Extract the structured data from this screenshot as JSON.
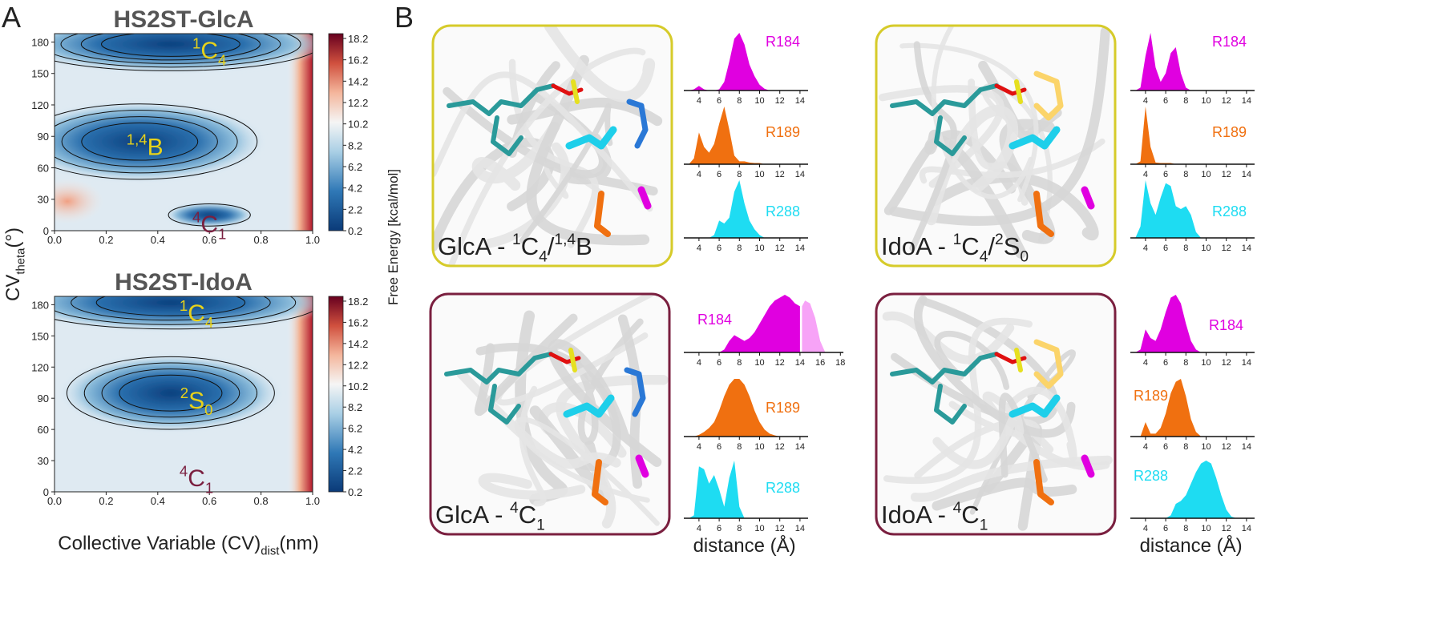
{
  "panel_labels": [
    "A",
    "B"
  ],
  "y_axis_label": [
    {
      "t": "CV"
    },
    {
      "sub": "theta"
    },
    {
      "t": "(°)"
    }
  ],
  "x_axis_label": [
    {
      "t": "Collective Variable (CV)"
    },
    {
      "sub": "dist"
    },
    {
      "t": "(nm)"
    }
  ],
  "colorbar_label": "Free Energy [kcal/mol]",
  "structures": [
    {
      "label": [
        {
          "t": "GlcA - "
        },
        {
          "sup": "1"
        },
        {
          "t": "C"
        },
        {
          "sub": "4"
        },
        {
          "t": "/"
        },
        {
          "sup": "1,4"
        },
        {
          "t": "B"
        }
      ],
      "border": "#d6cb2a"
    },
    {
      "label": [
        {
          "t": "IdoA - "
        },
        {
          "sup": "1"
        },
        {
          "t": "C"
        },
        {
          "sub": "4"
        },
        {
          "t": "/"
        },
        {
          "sup": "2"
        },
        {
          "t": "S"
        },
        {
          "sub": "0"
        }
      ],
      "border": "#d6cb2a"
    },
    {
      "label": [
        {
          "t": "GlcA - "
        },
        {
          "sup": "4"
        },
        {
          "t": "C"
        },
        {
          "sub": "1"
        }
      ],
      "border": "#7a1f3f"
    },
    {
      "label": [
        {
          "t": "IdoA - "
        },
        {
          "sup": "4"
        },
        {
          "t": "C"
        },
        {
          "sub": "1"
        }
      ],
      "border": "#7a1f3f"
    }
  ],
  "chart_data": [
    {
      "type": "heatmap",
      "title": "HS2ST-GlcA",
      "xlim": [
        0,
        1
      ],
      "ylim": [
        0,
        188
      ],
      "xticks": [
        {
          "value": 0,
          "label": "0.0"
        },
        {
          "value": 0.2,
          "label": "0.2"
        },
        {
          "value": 0.4,
          "label": "0.4"
        },
        {
          "value": 0.6,
          "label": "0.6"
        },
        {
          "value": 0.8,
          "label": "0.8"
        },
        {
          "value": 1,
          "label": "1.0"
        }
      ],
      "yticks": [
        0,
        30,
        60,
        90,
        120,
        150,
        180
      ],
      "colorbar": {
        "lim": [
          0.2,
          18.65
        ],
        "ticks": [
          0.2,
          2.2,
          4.2,
          6.2,
          8.2,
          10.2,
          12.2,
          14.2,
          16.2,
          18.2
        ]
      },
      "annotations": [
        {
          "parts": [
            {
              "sup": "1"
            },
            {
              "t": "C"
            },
            {
              "sub": "4"
            }
          ],
          "color": "#e8d21a"
        },
        {
          "parts": [
            {
              "sup": "1,4"
            },
            {
              "t": "B"
            }
          ],
          "color": "#e8d21a"
        },
        {
          "parts": [
            {
              "sup": "4"
            },
            {
              "t": "C"
            },
            {
              "sub": "1"
            }
          ],
          "color": "#7a1f3f"
        }
      ]
    },
    {
      "type": "heatmap",
      "title": "HS2ST-IdoA",
      "xlim": [
        0,
        1
      ],
      "ylim": [
        0,
        188
      ],
      "xticks": [
        {
          "value": 0,
          "label": "0.0"
        },
        {
          "value": 0.2,
          "label": "0.2"
        },
        {
          "value": 0.4,
          "label": "0.4"
        },
        {
          "value": 0.6,
          "label": "0.6"
        },
        {
          "value": 0.8,
          "label": "0.8"
        },
        {
          "value": 1,
          "label": "1.0"
        }
      ],
      "yticks": [
        0,
        30,
        60,
        90,
        120,
        150,
        180
      ],
      "colorbar": {
        "lim": [
          0.2,
          18.65
        ],
        "ticks": [
          0.2,
          2.2,
          4.2,
          6.2,
          8.2,
          10.2,
          12.2,
          14.2,
          16.2,
          18.2
        ]
      },
      "annotations": [
        {
          "parts": [
            {
              "sup": "1"
            },
            {
              "t": "C"
            },
            {
              "sub": "4"
            }
          ],
          "color": "#e8d21a"
        },
        {
          "parts": [
            {
              "sup": "2"
            },
            {
              "t": "S"
            },
            {
              "sub": "0"
            }
          ],
          "color": "#e8d21a"
        },
        {
          "parts": [
            {
              "sup": "4"
            },
            {
              "t": "C"
            },
            {
              "sub": "1"
            }
          ],
          "color": "#7a1f3f"
        }
      ]
    },
    {
      "type": "area",
      "name": "R184",
      "color": "#e000e0",
      "xlim": [
        2.5,
        14.8
      ],
      "ylim": [
        0,
        1
      ],
      "xticks": [
        4,
        6,
        8,
        10,
        12,
        14
      ],
      "x": [
        3,
        3.5,
        4,
        4.5,
        5,
        5.5,
        6,
        6.5,
        7,
        7.5,
        8,
        8.5,
        9,
        9.5,
        10,
        10.5,
        11,
        11.5,
        12,
        12.5,
        13
      ],
      "values": [
        0,
        0.02,
        0.08,
        0.02,
        0,
        0,
        0.02,
        0.15,
        0.5,
        0.9,
        1,
        0.8,
        0.45,
        0.25,
        0.1,
        0.03,
        0,
        0,
        0,
        0,
        0
      ]
    },
    {
      "type": "area",
      "name": "R189",
      "color": "#f07010",
      "xlim": [
        2.5,
        14.8
      ],
      "ylim": [
        0,
        1
      ],
      "xticks": [
        4,
        6,
        8,
        10,
        12,
        14
      ],
      "x": [
        3,
        3.5,
        4,
        4.5,
        5,
        5.5,
        6,
        6.5,
        7,
        7.5,
        8,
        8.5,
        9,
        9.5,
        10,
        10.5,
        11,
        11.5,
        12,
        12.5,
        13
      ],
      "values": [
        0,
        0.1,
        0.55,
        0.3,
        0.2,
        0.35,
        0.7,
        1,
        0.6,
        0.15,
        0.05,
        0.05,
        0.03,
        0.02,
        0.02,
        0,
        0,
        0,
        0,
        0,
        0
      ]
    },
    {
      "type": "area",
      "name": "R288",
      "color": "#1edcf2",
      "xlim": [
        2.5,
        14.8
      ],
      "ylim": [
        0,
        1
      ],
      "xticks": [
        4,
        6,
        8,
        10,
        12,
        14
      ],
      "x": [
        3,
        3.5,
        4,
        4.5,
        5,
        5.5,
        6,
        6.5,
        7,
        7.5,
        8,
        8.5,
        9,
        9.5,
        10,
        10.5,
        11,
        11.5,
        12,
        12.5,
        13
      ],
      "values": [
        0,
        0,
        0,
        0,
        0,
        0.05,
        0.3,
        0.25,
        0.35,
        0.8,
        1,
        0.6,
        0.3,
        0.15,
        0.05,
        0,
        0,
        0,
        0,
        0,
        0
      ]
    },
    {
      "type": "area",
      "name": "R184",
      "color": "#e000e0",
      "xlim": [
        2.5,
        14.8
      ],
      "ylim": [
        0,
        1
      ],
      "xticks": [
        4,
        6,
        8,
        10,
        12,
        14
      ],
      "x": [
        3,
        3.5,
        4,
        4.5,
        5,
        5.5,
        6,
        6.5,
        7,
        7.5,
        8,
        8.5,
        9,
        9.5,
        10,
        10.5,
        11,
        11.5,
        12,
        12.5,
        13
      ],
      "values": [
        0,
        0.05,
        0.6,
        1,
        0.4,
        0.15,
        0.3,
        0.65,
        0.75,
        0.3,
        0.05,
        0,
        0,
        0,
        0,
        0,
        0,
        0,
        0,
        0,
        0
      ]
    },
    {
      "type": "area",
      "name": "R189",
      "color": "#f07010",
      "xlim": [
        2.5,
        14.8
      ],
      "ylim": [
        0,
        1
      ],
      "xticks": [
        4,
        6,
        8,
        10,
        12,
        14
      ],
      "x": [
        3,
        3.5,
        4,
        4.5,
        5,
        5.5,
        6,
        6.5,
        7,
        7.5,
        8,
        8.5,
        9,
        9.5,
        10,
        10.5,
        11,
        11.5,
        12,
        12.5,
        13
      ],
      "values": [
        0,
        0.05,
        1,
        0.3,
        0.03,
        0.02,
        0.02,
        0.02,
        0,
        0,
        0,
        0,
        0,
        0,
        0,
        0,
        0,
        0,
        0,
        0,
        0
      ]
    },
    {
      "type": "area",
      "name": "R288",
      "color": "#1edcf2",
      "xlim": [
        2.5,
        14.8
      ],
      "ylim": [
        0,
        1
      ],
      "xticks": [
        4,
        6,
        8,
        10,
        12,
        14
      ],
      "x": [
        3,
        3.5,
        4,
        4.5,
        5,
        5.5,
        6,
        6.5,
        7,
        7.5,
        8,
        8.5,
        9,
        9.5,
        10,
        10.5,
        11,
        11.5,
        12,
        12.5,
        13
      ],
      "values": [
        0,
        0.2,
        1,
        0.6,
        0.4,
        0.7,
        0.95,
        0.9,
        0.55,
        0.5,
        0.55,
        0.4,
        0.1,
        0,
        0,
        0,
        0,
        0,
        0,
        0,
        0
      ]
    },
    {
      "type": "area",
      "name": "R184",
      "color": "#e000e0",
      "xlim": [
        2.5,
        18.3
      ],
      "ylim": [
        0,
        1
      ],
      "xticks": [
        4,
        6,
        8,
        10,
        12,
        14,
        16,
        18
      ],
      "x": [
        3,
        3.5,
        4,
        4.5,
        5,
        5.5,
        6,
        6.5,
        7,
        7.5,
        8,
        8.5,
        9,
        9.5,
        10,
        10.5,
        11,
        11.5,
        12,
        12.5,
        13,
        13.5,
        14
      ],
      "values": [
        0,
        0,
        0,
        0,
        0,
        0,
        0,
        0.05,
        0.2,
        0.3,
        0.25,
        0.2,
        0.25,
        0.35,
        0.5,
        0.65,
        0.8,
        0.9,
        0.95,
        1,
        0.95,
        0.85,
        0.8
      ],
      "extension": {
        "color": "#f7a3f7",
        "x": [
          14.2,
          14.5,
          15,
          15.5,
          16,
          16.5
        ],
        "values": [
          0.8,
          0.9,
          0.85,
          0.6,
          0.2,
          0
        ]
      }
    },
    {
      "type": "area",
      "name": "R189",
      "color": "#f07010",
      "xlim": [
        2.5,
        14.8
      ],
      "ylim": [
        0,
        1
      ],
      "xticks": [
        4,
        6,
        8,
        10,
        12,
        14
      ],
      "x": [
        3,
        3.5,
        4,
        4.5,
        5,
        5.5,
        6,
        6.5,
        7,
        7.5,
        8,
        8.5,
        9,
        9.5,
        10,
        10.5,
        11,
        11.5,
        12,
        12.5,
        13
      ],
      "values": [
        0,
        0,
        0.03,
        0.08,
        0.15,
        0.25,
        0.45,
        0.7,
        0.9,
        1,
        1,
        0.9,
        0.7,
        0.45,
        0.25,
        0.12,
        0.05,
        0.02,
        0,
        0,
        0
      ]
    },
    {
      "type": "area",
      "name": "R288",
      "color": "#1edcf2",
      "xlim": [
        2.5,
        14.8
      ],
      "ylim": [
        0,
        1
      ],
      "xticks": [
        4,
        6,
        8,
        10,
        12,
        14
      ],
      "xlabel": "distance (Å)",
      "x": [
        3,
        3.5,
        4,
        4.5,
        5,
        5.5,
        6,
        6.5,
        7,
        7.5,
        8,
        8.5,
        9,
        9.5,
        10,
        10.5,
        11,
        11.5,
        12,
        12.5,
        13
      ],
      "values": [
        0,
        0.05,
        0.9,
        0.85,
        0.6,
        0.75,
        0.5,
        0.2,
        0.7,
        1,
        0.2,
        0,
        0,
        0,
        0,
        0,
        0,
        0,
        0,
        0,
        0
      ]
    },
    {
      "type": "area",
      "name": "R184",
      "color": "#e000e0",
      "xlim": [
        2.5,
        14.8
      ],
      "ylim": [
        0,
        1
      ],
      "xticks": [
        4,
        6,
        8,
        10,
        12,
        14
      ],
      "x": [
        3,
        3.5,
        4,
        4.5,
        5,
        5.5,
        6,
        6.5,
        7,
        7.5,
        8,
        8.5,
        9,
        9.5,
        10,
        10.5,
        11,
        11.5,
        12,
        12.5,
        13
      ],
      "values": [
        0,
        0.05,
        0.4,
        0.25,
        0.2,
        0.4,
        0.7,
        0.95,
        1,
        0.85,
        0.5,
        0.2,
        0.05,
        0,
        0,
        0,
        0,
        0,
        0,
        0,
        0
      ]
    },
    {
      "type": "area",
      "name": "R189",
      "color": "#f07010",
      "xlim": [
        2.5,
        14.8
      ],
      "ylim": [
        0,
        1
      ],
      "xticks": [
        4,
        6,
        8,
        10,
        12,
        14
      ],
      "x": [
        3,
        3.5,
        4,
        4.5,
        5,
        5.5,
        6,
        6.5,
        7,
        7.5,
        8,
        8.5,
        9,
        9.5,
        10,
        10.5,
        11,
        11.5,
        12,
        12.5,
        13
      ],
      "values": [
        0,
        0,
        0.25,
        0.05,
        0.05,
        0.15,
        0.4,
        0.75,
        0.95,
        1,
        0.7,
        0.3,
        0.08,
        0,
        0,
        0,
        0,
        0,
        0,
        0,
        0
      ]
    },
    {
      "type": "area",
      "name": "R288",
      "color": "#1edcf2",
      "xlim": [
        2.5,
        14.8
      ],
      "ylim": [
        0,
        1
      ],
      "xticks": [
        4,
        6,
        8,
        10,
        12,
        14
      ],
      "xlabel": "distance (Å)",
      "x": [
        3,
        3.5,
        4,
        4.5,
        5,
        5.5,
        6,
        6.5,
        7,
        7.5,
        8,
        8.5,
        9,
        9.5,
        10,
        10.5,
        11,
        11.5,
        12,
        12.5,
        13
      ],
      "values": [
        0,
        0,
        0,
        0,
        0,
        0,
        0,
        0.05,
        0.25,
        0.3,
        0.4,
        0.6,
        0.8,
        0.95,
        1,
        0.95,
        0.7,
        0.4,
        0.15,
        0.03,
        0
      ]
    }
  ]
}
